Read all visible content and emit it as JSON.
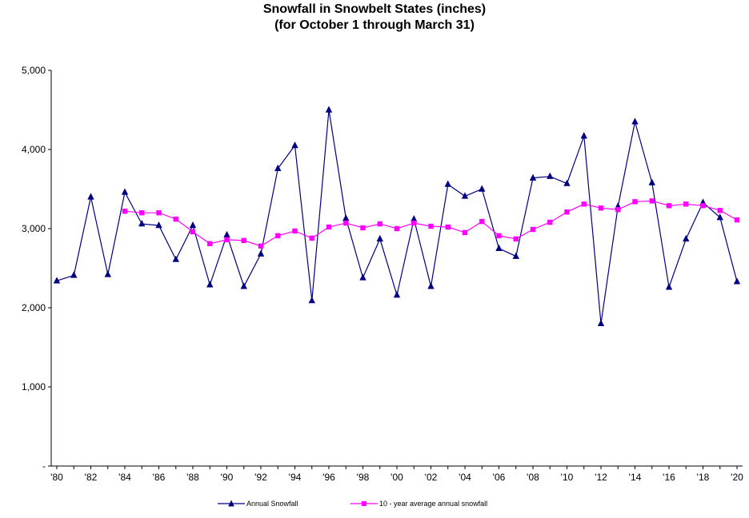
{
  "chart_data": {
    "type": "line",
    "title": "Snowfall in Snowbelt States (inches)",
    "subtitle": "(for October 1 through March 31)",
    "xlabel": "",
    "ylabel": "",
    "ylim": [
      0,
      5000
    ],
    "y_ticks": [
      {
        "value": 0,
        "label": "-"
      },
      {
        "value": 1000,
        "label": "1,000"
      },
      {
        "value": 2000,
        "label": "2,000"
      },
      {
        "value": 3000,
        "label": "3,000"
      },
      {
        "value": 4000,
        "label": "4,000"
      },
      {
        "value": 5000,
        "label": "5,000"
      }
    ],
    "x": [
      1980,
      1981,
      1982,
      1983,
      1984,
      1985,
      1986,
      1987,
      1988,
      1989,
      1990,
      1991,
      1992,
      1993,
      1994,
      1995,
      1996,
      1997,
      1998,
      1999,
      2000,
      2001,
      2002,
      2003,
      2004,
      2005,
      2006,
      2007,
      2008,
      2009,
      2010,
      2011,
      2012,
      2013,
      2014,
      2015,
      2016,
      2017,
      2018,
      2019,
      2020
    ],
    "x_ticks": [
      {
        "value": 1980,
        "label": "'80"
      },
      {
        "value": 1982,
        "label": "'82"
      },
      {
        "value": 1984,
        "label": "'84"
      },
      {
        "value": 1986,
        "label": "'86"
      },
      {
        "value": 1988,
        "label": "'88"
      },
      {
        "value": 1990,
        "label": "'90"
      },
      {
        "value": 1992,
        "label": "'92"
      },
      {
        "value": 1994,
        "label": "'94"
      },
      {
        "value": 1996,
        "label": "'96"
      },
      {
        "value": 1998,
        "label": "'98"
      },
      {
        "value": 2000,
        "label": "'00"
      },
      {
        "value": 2002,
        "label": "'02"
      },
      {
        "value": 2004,
        "label": "'04"
      },
      {
        "value": 2006,
        "label": "'06"
      },
      {
        "value": 2008,
        "label": "'08"
      },
      {
        "value": 2010,
        "label": "'10"
      },
      {
        "value": 2012,
        "label": "'12"
      },
      {
        "value": 2014,
        "label": "'14"
      },
      {
        "value": 2016,
        "label": "'16"
      },
      {
        "value": 2018,
        "label": "'18"
      },
      {
        "value": 2020,
        "label": "'20"
      }
    ],
    "grid": false,
    "legend_position": "bottom",
    "series": [
      {
        "name": "Annual Snowfall",
        "color": "#000080",
        "marker": "triangle",
        "values": [
          2340,
          2410,
          3400,
          2420,
          3460,
          3060,
          3040,
          2610,
          3040,
          2290,
          2920,
          2270,
          2680,
          3760,
          4050,
          2090,
          4500,
          3130,
          2380,
          2870,
          2160,
          3120,
          2270,
          3560,
          3410,
          3500,
          2750,
          2650,
          3640,
          3660,
          3570,
          4170,
          1800,
          3280,
          4350,
          3580,
          2260,
          2870,
          3330,
          3140,
          2330
        ]
      },
      {
        "name": "10 - year average annual snowfall",
        "color": "#ff00ff",
        "marker": "square",
        "values": [
          null,
          null,
          null,
          null,
          3220,
          3200,
          3200,
          3120,
          2960,
          2810,
          2860,
          2850,
          2780,
          2910,
          2970,
          2880,
          3020,
          3070,
          3010,
          3060,
          3000,
          3070,
          3030,
          3020,
          2950,
          3090,
          2910,
          2870,
          2990,
          3080,
          3210,
          3310,
          3260,
          3240,
          3340,
          3350,
          3290,
          3310,
          3290,
          3230,
          3110
        ]
      }
    ]
  }
}
